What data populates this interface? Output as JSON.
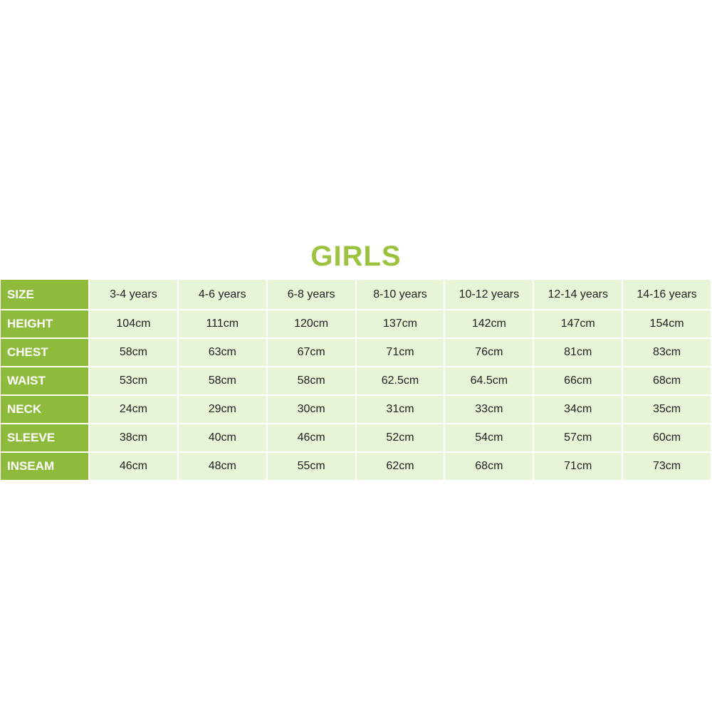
{
  "title": "GIRLS",
  "colors": {
    "title": "#9cc33f",
    "label_column": "#8ebb3b",
    "cell": "#e8f4d6"
  },
  "table": {
    "rows": [
      {
        "label": "SIZE",
        "values": [
          "3-4 years",
          "4-6 years",
          "6-8 years",
          "8-10 years",
          "10-12 years",
          "12-14 years",
          "14-16 years"
        ]
      },
      {
        "label": "HEIGHT",
        "values": [
          "104cm",
          "111cm",
          "120cm",
          "137cm",
          "142cm",
          "147cm",
          "154cm"
        ]
      },
      {
        "label": "CHEST",
        "values": [
          "58cm",
          "63cm",
          "67cm",
          "71cm",
          "76cm",
          "81cm",
          "83cm"
        ]
      },
      {
        "label": "WAIST",
        "values": [
          "53cm",
          "58cm",
          "58cm",
          "62.5cm",
          "64.5cm",
          "66cm",
          "68cm"
        ]
      },
      {
        "label": "NECK",
        "values": [
          "24cm",
          "29cm",
          "30cm",
          "31cm",
          "33cm",
          "34cm",
          "35cm"
        ]
      },
      {
        "label": "SLEEVE",
        "values": [
          "38cm",
          "40cm",
          "46cm",
          "52cm",
          "54cm",
          "57cm",
          "60cm"
        ]
      },
      {
        "label": "INSEAM",
        "values": [
          "46cm",
          "48cm",
          "55cm",
          "62cm",
          "68cm",
          "71cm",
          "73cm"
        ]
      }
    ]
  }
}
